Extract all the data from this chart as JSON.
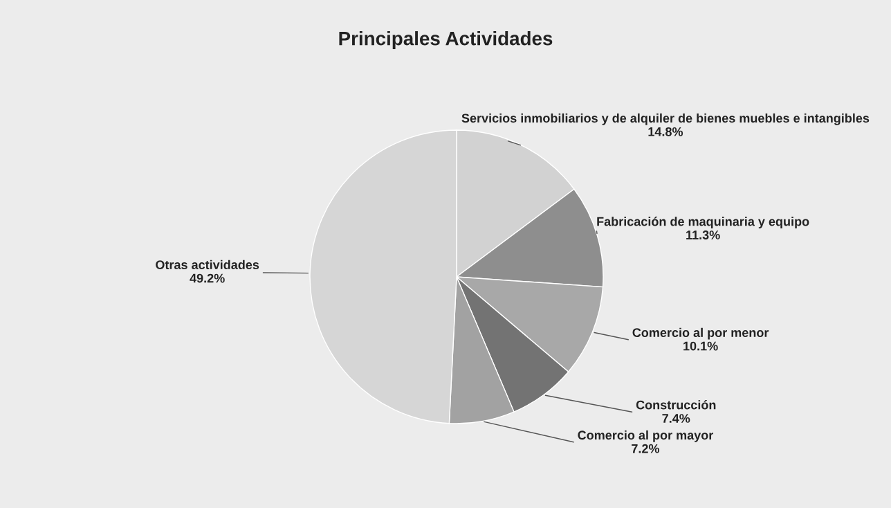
{
  "chart_data": {
    "type": "pie",
    "title": "Principales Actividades",
    "categories": [
      "Servicios inmobiliarios y de alquiler de bienes muebles e intangibles",
      "Fabricación de maquinaria y equipo",
      "Comercio al por menor",
      "Construcción",
      "Comercio al por mayor",
      "Otras actividades"
    ],
    "values": [
      14.8,
      11.3,
      10.1,
      7.4,
      7.2,
      49.2
    ],
    "colors": [
      "#d2d2d2",
      "#8e8e8e",
      "#a8a8a8",
      "#737373",
      "#a2a2a2",
      "#d6d6d6"
    ],
    "value_labels": [
      "14.8%",
      "11.3%",
      "10.1%",
      "7.4%",
      "7.2%",
      "49.2%"
    ],
    "legend": false
  }
}
